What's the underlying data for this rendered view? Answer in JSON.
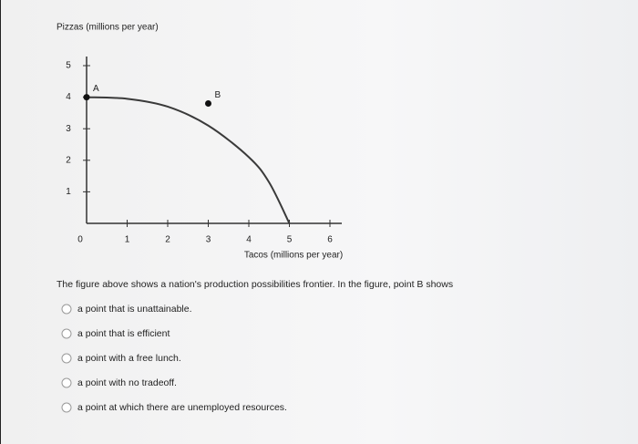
{
  "chart_data": {
    "type": "line",
    "y_label": "Pizzas (millions per year)",
    "x_label": "Tacos (millions per year)",
    "x": [
      0,
      1,
      2,
      3,
      4,
      4.5,
      5
    ],
    "values": [
      4,
      3.95,
      3.7,
      3.1,
      2.1,
      1.3,
      0
    ],
    "color": "#3a3a3a",
    "points": [
      {
        "label": "A",
        "x": 0,
        "y": 4
      },
      {
        "label": "B",
        "x": 3,
        "y": 3.8
      }
    ],
    "xlim": [
      0,
      6.3
    ],
    "ylim": [
      0,
      5.4
    ],
    "xticks": [
      0,
      1,
      2,
      3,
      4,
      5,
      6
    ],
    "yticks": [
      1,
      2,
      3,
      4,
      5
    ]
  },
  "question": {
    "prompt": "The figure above shows a nation's production possibilities frontier. In the figure, point B shows",
    "options": [
      "a point that is unattainable.",
      "a point that is efficient",
      "a point with a free lunch.",
      "a point with no tradeoff.",
      "a point at which there are unemployed resources."
    ]
  }
}
